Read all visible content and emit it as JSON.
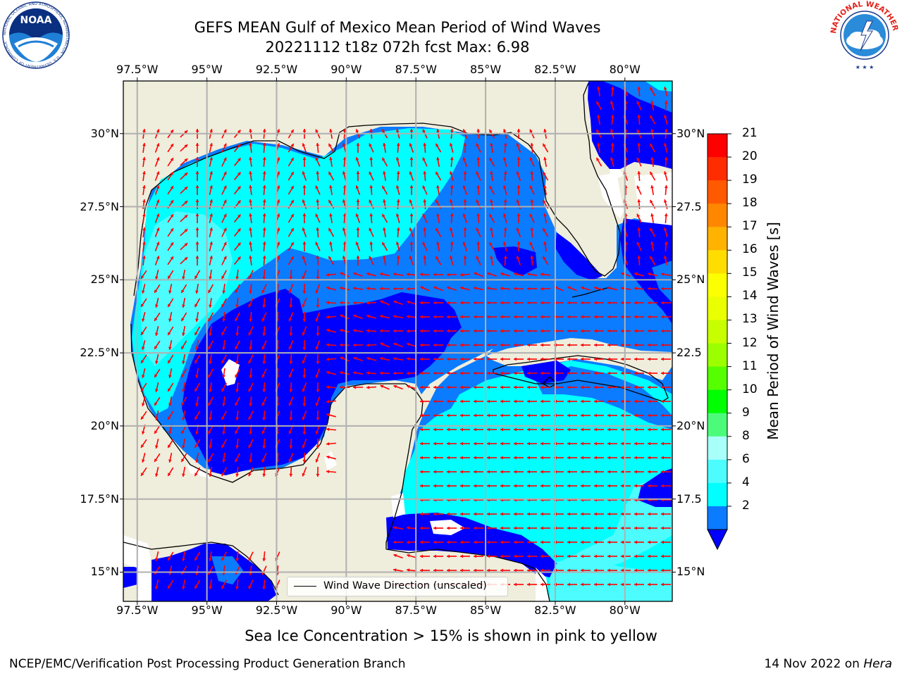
{
  "header": {
    "title_line1": "GEFS MEAN Gulf of Mexico Mean Period of Wind Waves",
    "title_line2": "20221112 t18z 072h fcst   Max: 6.98"
  },
  "logos": {
    "left": "NOAA",
    "left_ring_text": "NATIONAL OCEANIC AND ATMOSPHERIC ADMINISTRATION · U.S. DEPARTMENT OF COMMERCE",
    "right_ring_text": "NATIONAL WEATHER SERVICE"
  },
  "map": {
    "lon_labels": [
      "97.5°W",
      "95°W",
      "92.5°W",
      "90°W",
      "87.5°W",
      "85°W",
      "82.5°W",
      "80°W"
    ],
    "lat_labels_left": [
      "30°N",
      "27.5°N",
      "25°N",
      "22.5°N",
      "20°N",
      "17.5°N",
      "15°N"
    ],
    "lat_labels_right": [
      "30°N",
      "27.5",
      "25°N",
      "22.5",
      "20°N",
      "17.5",
      "15°N"
    ],
    "lon_range": [
      -98.0,
      -78.3
    ],
    "lat_range": [
      14.0,
      31.8
    ],
    "gridlines": true,
    "land_color": "#efeddc",
    "ocean_palette": {
      "2-4": "#0b7bff",
      "4-6": "#00ffff",
      "6-8": "#4dfcff",
      "below_2": "#0000ff"
    },
    "arrow_color": "#ff0000"
  },
  "legend": {
    "label": "Wind Wave Direction (unscaled)"
  },
  "colorbar": {
    "title": "Mean Period of Wind Waves [s]",
    "ticks": [
      "21",
      "20",
      "19",
      "18",
      "17",
      "16",
      "15",
      "14",
      "13",
      "12",
      "11",
      "10",
      "9",
      "8",
      "6",
      "4",
      "2"
    ],
    "colors": [
      "#ff0000",
      "#ff2c00",
      "#ff5a00",
      "#ff8700",
      "#ffb300",
      "#ffdd00",
      "#fcff00",
      "#eaff00",
      "#c8ff00",
      "#9cff00",
      "#56ff00",
      "#00ff00",
      "#4cfb7a",
      "#a9fff9",
      "#4dfcff",
      "#00ffff",
      "#0b7bff"
    ],
    "extend_color": "#0000ff"
  },
  "footer": {
    "note": "Sea Ice Concentration > 15% is shown in pink to yellow",
    "credit": "NCEP/EMC/Verification Post Processing Product Generation Branch",
    "date": "14 Nov 2022 on ",
    "host": "Hera"
  }
}
